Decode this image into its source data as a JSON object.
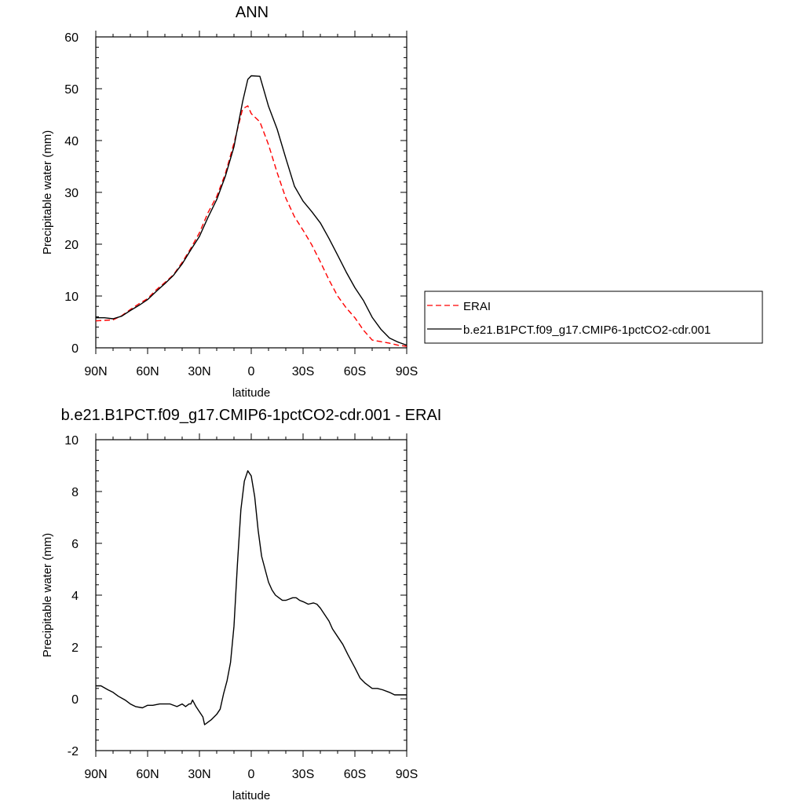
{
  "chart_data": [
    {
      "type": "line",
      "title": "ANN",
      "xlabel": "latitude",
      "ylabel": "Precipitable water (mm)",
      "xlim": [
        90,
        -90
      ],
      "ylim": [
        0,
        60
      ],
      "x_ticks": [
        90,
        60,
        30,
        0,
        -30,
        -60,
        -90
      ],
      "x_tick_labels": [
        "90N",
        "60N",
        "30N",
        "0",
        "30S",
        "60S",
        "90S"
      ],
      "y_ticks": [
        0,
        10,
        20,
        30,
        40,
        50,
        60
      ],
      "y_tick_labels": [
        "0",
        "10",
        "20",
        "30",
        "40",
        "50",
        "60"
      ],
      "grid": false,
      "legend_position": "right",
      "series": [
        {
          "name": "ERAI",
          "color": "#ff0000",
          "dash": "dashed",
          "x": [
            90,
            85,
            80,
            75,
            70,
            65,
            60,
            55,
            50,
            45,
            40,
            35,
            30,
            25,
            20,
            15,
            10,
            5,
            2,
            0,
            -5,
            -10,
            -15,
            -20,
            -25,
            -30,
            -35,
            -40,
            -45,
            -50,
            -55,
            -60,
            -65,
            -70,
            -75,
            -80,
            -85,
            -90
          ],
          "y": [
            5.2,
            5.3,
            5.4,
            6.2,
            7.4,
            8.5,
            9.5,
            11.2,
            12.6,
            14.1,
            16.5,
            19.2,
            22.2,
            26.1,
            29.2,
            33.6,
            39.5,
            46.1,
            46.7,
            45.2,
            43.6,
            39.2,
            33.8,
            28.9,
            25.3,
            22.7,
            19.9,
            16.6,
            13.1,
            10.0,
            7.7,
            5.8,
            3.4,
            1.5,
            1.2,
            0.9,
            0.5,
            0.3
          ]
        },
        {
          "name": "b.e21.B1PCT.f09_g17.CMIP6-1pctCO2-cdr.001",
          "color": "#000000",
          "dash": "solid",
          "x": [
            90,
            85,
            80,
            75,
            70,
            65,
            60,
            55,
            50,
            45,
            40,
            35,
            30,
            25,
            20,
            15,
            10,
            5,
            2,
            0,
            -5,
            -10,
            -15,
            -20,
            -25,
            -30,
            -35,
            -40,
            -45,
            -50,
            -55,
            -60,
            -65,
            -70,
            -75,
            -80,
            -85,
            -90
          ],
          "y": [
            5.8,
            5.8,
            5.6,
            6.1,
            7.2,
            8.2,
            9.3,
            10.9,
            12.4,
            14.0,
            16.2,
            18.9,
            21.5,
            25.2,
            28.6,
            33.1,
            38.8,
            47.5,
            51.8,
            52.5,
            52.4,
            46.6,
            42.2,
            36.6,
            31.2,
            28.3,
            26.3,
            24.1,
            21.1,
            17.9,
            14.6,
            11.6,
            9.1,
            5.9,
            3.6,
            1.9,
            1.1,
            0.5
          ]
        }
      ]
    },
    {
      "type": "line",
      "title": "b.e21.B1PCT.f09_g17.CMIP6-1pctCO2-cdr.001 - ERAI",
      "xlabel": "latitude",
      "ylabel": "Precipitable water (mm)",
      "xlim": [
        90,
        -90
      ],
      "ylim": [
        -2,
        10
      ],
      "x_ticks": [
        90,
        60,
        30,
        0,
        -30,
        -60,
        -90
      ],
      "x_tick_labels": [
        "90N",
        "60N",
        "30N",
        "0",
        "30S",
        "60S",
        "90S"
      ],
      "y_ticks": [
        -2,
        0,
        2,
        4,
        6,
        8,
        10
      ],
      "y_tick_labels": [
        "-2",
        "0",
        "2",
        "4",
        "6",
        "8",
        "10"
      ],
      "grid": false,
      "series": [
        {
          "color": "#000000",
          "dash": "solid",
          "x": [
            90,
            87,
            83,
            80,
            77,
            73,
            70,
            67,
            63,
            60,
            57,
            53,
            50,
            47,
            43,
            40,
            38,
            36,
            35,
            34,
            32,
            30,
            28,
            27,
            25,
            23,
            20,
            18,
            16,
            14,
            12,
            10,
            8,
            6,
            4,
            2,
            0,
            -2,
            -4,
            -6,
            -8,
            -10,
            -12,
            -14,
            -16,
            -18,
            -20,
            -22,
            -24,
            -26,
            -28,
            -30,
            -33,
            -36,
            -38,
            -40,
            -42,
            -45,
            -47,
            -50,
            -53,
            -56,
            -60,
            -63,
            -66,
            -70,
            -73,
            -76,
            -80,
            -83,
            -86,
            -88,
            -90
          ],
          "y": [
            0.5,
            0.5,
            0.35,
            0.25,
            0.1,
            -0.05,
            -0.2,
            -0.3,
            -0.35,
            -0.25,
            -0.25,
            -0.2,
            -0.2,
            -0.2,
            -0.3,
            -0.2,
            -0.3,
            -0.2,
            -0.2,
            -0.05,
            -0.3,
            -0.5,
            -0.7,
            -1.0,
            -0.9,
            -0.8,
            -0.6,
            -0.4,
            0.2,
            0.7,
            1.4,
            2.8,
            5.2,
            7.3,
            8.4,
            8.8,
            8.6,
            7.8,
            6.5,
            5.5,
            5.0,
            4.5,
            4.2,
            4.0,
            3.9,
            3.8,
            3.8,
            3.85,
            3.9,
            3.9,
            3.8,
            3.75,
            3.65,
            3.7,
            3.65,
            3.5,
            3.3,
            3.0,
            2.7,
            2.4,
            2.1,
            1.7,
            1.2,
            0.8,
            0.6,
            0.4,
            0.4,
            0.35,
            0.25,
            0.15,
            0.15,
            0.15,
            0.15
          ]
        }
      ]
    }
  ]
}
